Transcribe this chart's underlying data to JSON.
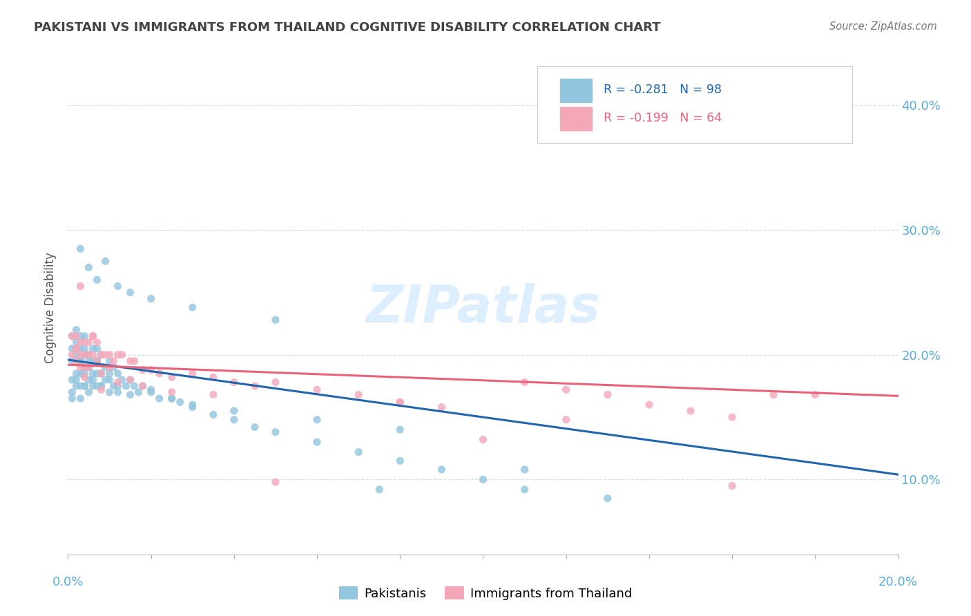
{
  "title": "PAKISTANI VS IMMIGRANTS FROM THAILAND COGNITIVE DISABILITY CORRELATION CHART",
  "source": "Source: ZipAtlas.com",
  "ylabel": "Cognitive Disability",
  "y_ticks": [
    0.1,
    0.2,
    0.3,
    0.4
  ],
  "y_tick_labels": [
    "10.0%",
    "20.0%",
    "30.0%",
    "40.0%"
  ],
  "x_min": 0.0,
  "x_max": 0.2,
  "y_min": 0.04,
  "y_max": 0.435,
  "series1_color": "#92c5de",
  "series2_color": "#f4a7b9",
  "line1_color": "#2166ac",
  "line2_color": "#e8637a",
  "watermark_color": "#ddeeff",
  "title_color": "#444444",
  "tick_color": "#5aaadd",
  "grid_color": "#cce0f0",
  "legend1_label": "R = -0.281   N = 98",
  "legend2_label": "R = -0.199   N = 64",
  "bottom_legend1": "Pakistanis",
  "bottom_legend2": "Immigrants from Thailand",
  "line1_intercept": 0.196,
  "line1_slope": -0.46,
  "line2_intercept": 0.192,
  "line2_slope": -0.125,
  "pakistanis_x": [
    0.001,
    0.001,
    0.001,
    0.001,
    0.001,
    0.002,
    0.002,
    0.002,
    0.002,
    0.002,
    0.002,
    0.003,
    0.003,
    0.003,
    0.003,
    0.003,
    0.003,
    0.003,
    0.004,
    0.004,
    0.004,
    0.004,
    0.004,
    0.004,
    0.005,
    0.005,
    0.005,
    0.005,
    0.006,
    0.006,
    0.006,
    0.006,
    0.007,
    0.007,
    0.007,
    0.007,
    0.008,
    0.008,
    0.008,
    0.009,
    0.009,
    0.01,
    0.01,
    0.01,
    0.011,
    0.011,
    0.012,
    0.012,
    0.013,
    0.014,
    0.015,
    0.016,
    0.017,
    0.018,
    0.02,
    0.022,
    0.025,
    0.027,
    0.03,
    0.035,
    0.04,
    0.045,
    0.05,
    0.06,
    0.07,
    0.08,
    0.09,
    0.1,
    0.11,
    0.13,
    0.001,
    0.002,
    0.003,
    0.004,
    0.005,
    0.006,
    0.007,
    0.008,
    0.01,
    0.012,
    0.015,
    0.02,
    0.025,
    0.03,
    0.04,
    0.06,
    0.08,
    0.11,
    0.003,
    0.005,
    0.007,
    0.009,
    0.012,
    0.015,
    0.02,
    0.03,
    0.05,
    0.075
  ],
  "pakistanis_y": [
    0.195,
    0.215,
    0.18,
    0.205,
    0.17,
    0.21,
    0.195,
    0.185,
    0.22,
    0.175,
    0.2,
    0.215,
    0.195,
    0.185,
    0.205,
    0.175,
    0.165,
    0.195,
    0.2,
    0.215,
    0.185,
    0.175,
    0.205,
    0.19,
    0.2,
    0.19,
    0.18,
    0.17,
    0.205,
    0.195,
    0.185,
    0.175,
    0.205,
    0.195,
    0.185,
    0.175,
    0.2,
    0.185,
    0.175,
    0.19,
    0.18,
    0.195,
    0.18,
    0.17,
    0.19,
    0.175,
    0.185,
    0.17,
    0.18,
    0.175,
    0.18,
    0.175,
    0.17,
    0.175,
    0.17,
    0.165,
    0.165,
    0.162,
    0.158,
    0.152,
    0.148,
    0.142,
    0.138,
    0.13,
    0.122,
    0.115,
    0.108,
    0.1,
    0.092,
    0.085,
    0.165,
    0.18,
    0.195,
    0.175,
    0.195,
    0.18,
    0.195,
    0.175,
    0.185,
    0.175,
    0.168,
    0.172,
    0.165,
    0.16,
    0.155,
    0.148,
    0.14,
    0.108,
    0.285,
    0.27,
    0.26,
    0.275,
    0.255,
    0.25,
    0.245,
    0.238,
    0.228,
    0.092
  ],
  "thailand_x": [
    0.001,
    0.001,
    0.002,
    0.002,
    0.002,
    0.003,
    0.003,
    0.003,
    0.004,
    0.004,
    0.004,
    0.005,
    0.005,
    0.005,
    0.006,
    0.006,
    0.007,
    0.007,
    0.008,
    0.008,
    0.009,
    0.01,
    0.01,
    0.011,
    0.012,
    0.013,
    0.015,
    0.015,
    0.016,
    0.018,
    0.02,
    0.022,
    0.025,
    0.03,
    0.035,
    0.04,
    0.045,
    0.05,
    0.06,
    0.07,
    0.08,
    0.09,
    0.1,
    0.11,
    0.12,
    0.13,
    0.14,
    0.15,
    0.16,
    0.17,
    0.002,
    0.004,
    0.006,
    0.008,
    0.012,
    0.018,
    0.025,
    0.035,
    0.05,
    0.08,
    0.12,
    0.16,
    0.18,
    0.003
  ],
  "thailand_y": [
    0.2,
    0.215,
    0.205,
    0.195,
    0.215,
    0.21,
    0.2,
    0.19,
    0.21,
    0.2,
    0.19,
    0.21,
    0.2,
    0.19,
    0.215,
    0.2,
    0.21,
    0.195,
    0.2,
    0.185,
    0.2,
    0.2,
    0.19,
    0.195,
    0.2,
    0.2,
    0.195,
    0.18,
    0.195,
    0.188,
    0.188,
    0.185,
    0.182,
    0.185,
    0.182,
    0.178,
    0.175,
    0.178,
    0.172,
    0.168,
    0.162,
    0.158,
    0.132,
    0.178,
    0.172,
    0.168,
    0.16,
    0.155,
    0.15,
    0.168,
    0.205,
    0.182,
    0.215,
    0.172,
    0.178,
    0.175,
    0.17,
    0.168,
    0.098,
    0.162,
    0.148,
    0.095,
    0.168,
    0.255
  ]
}
